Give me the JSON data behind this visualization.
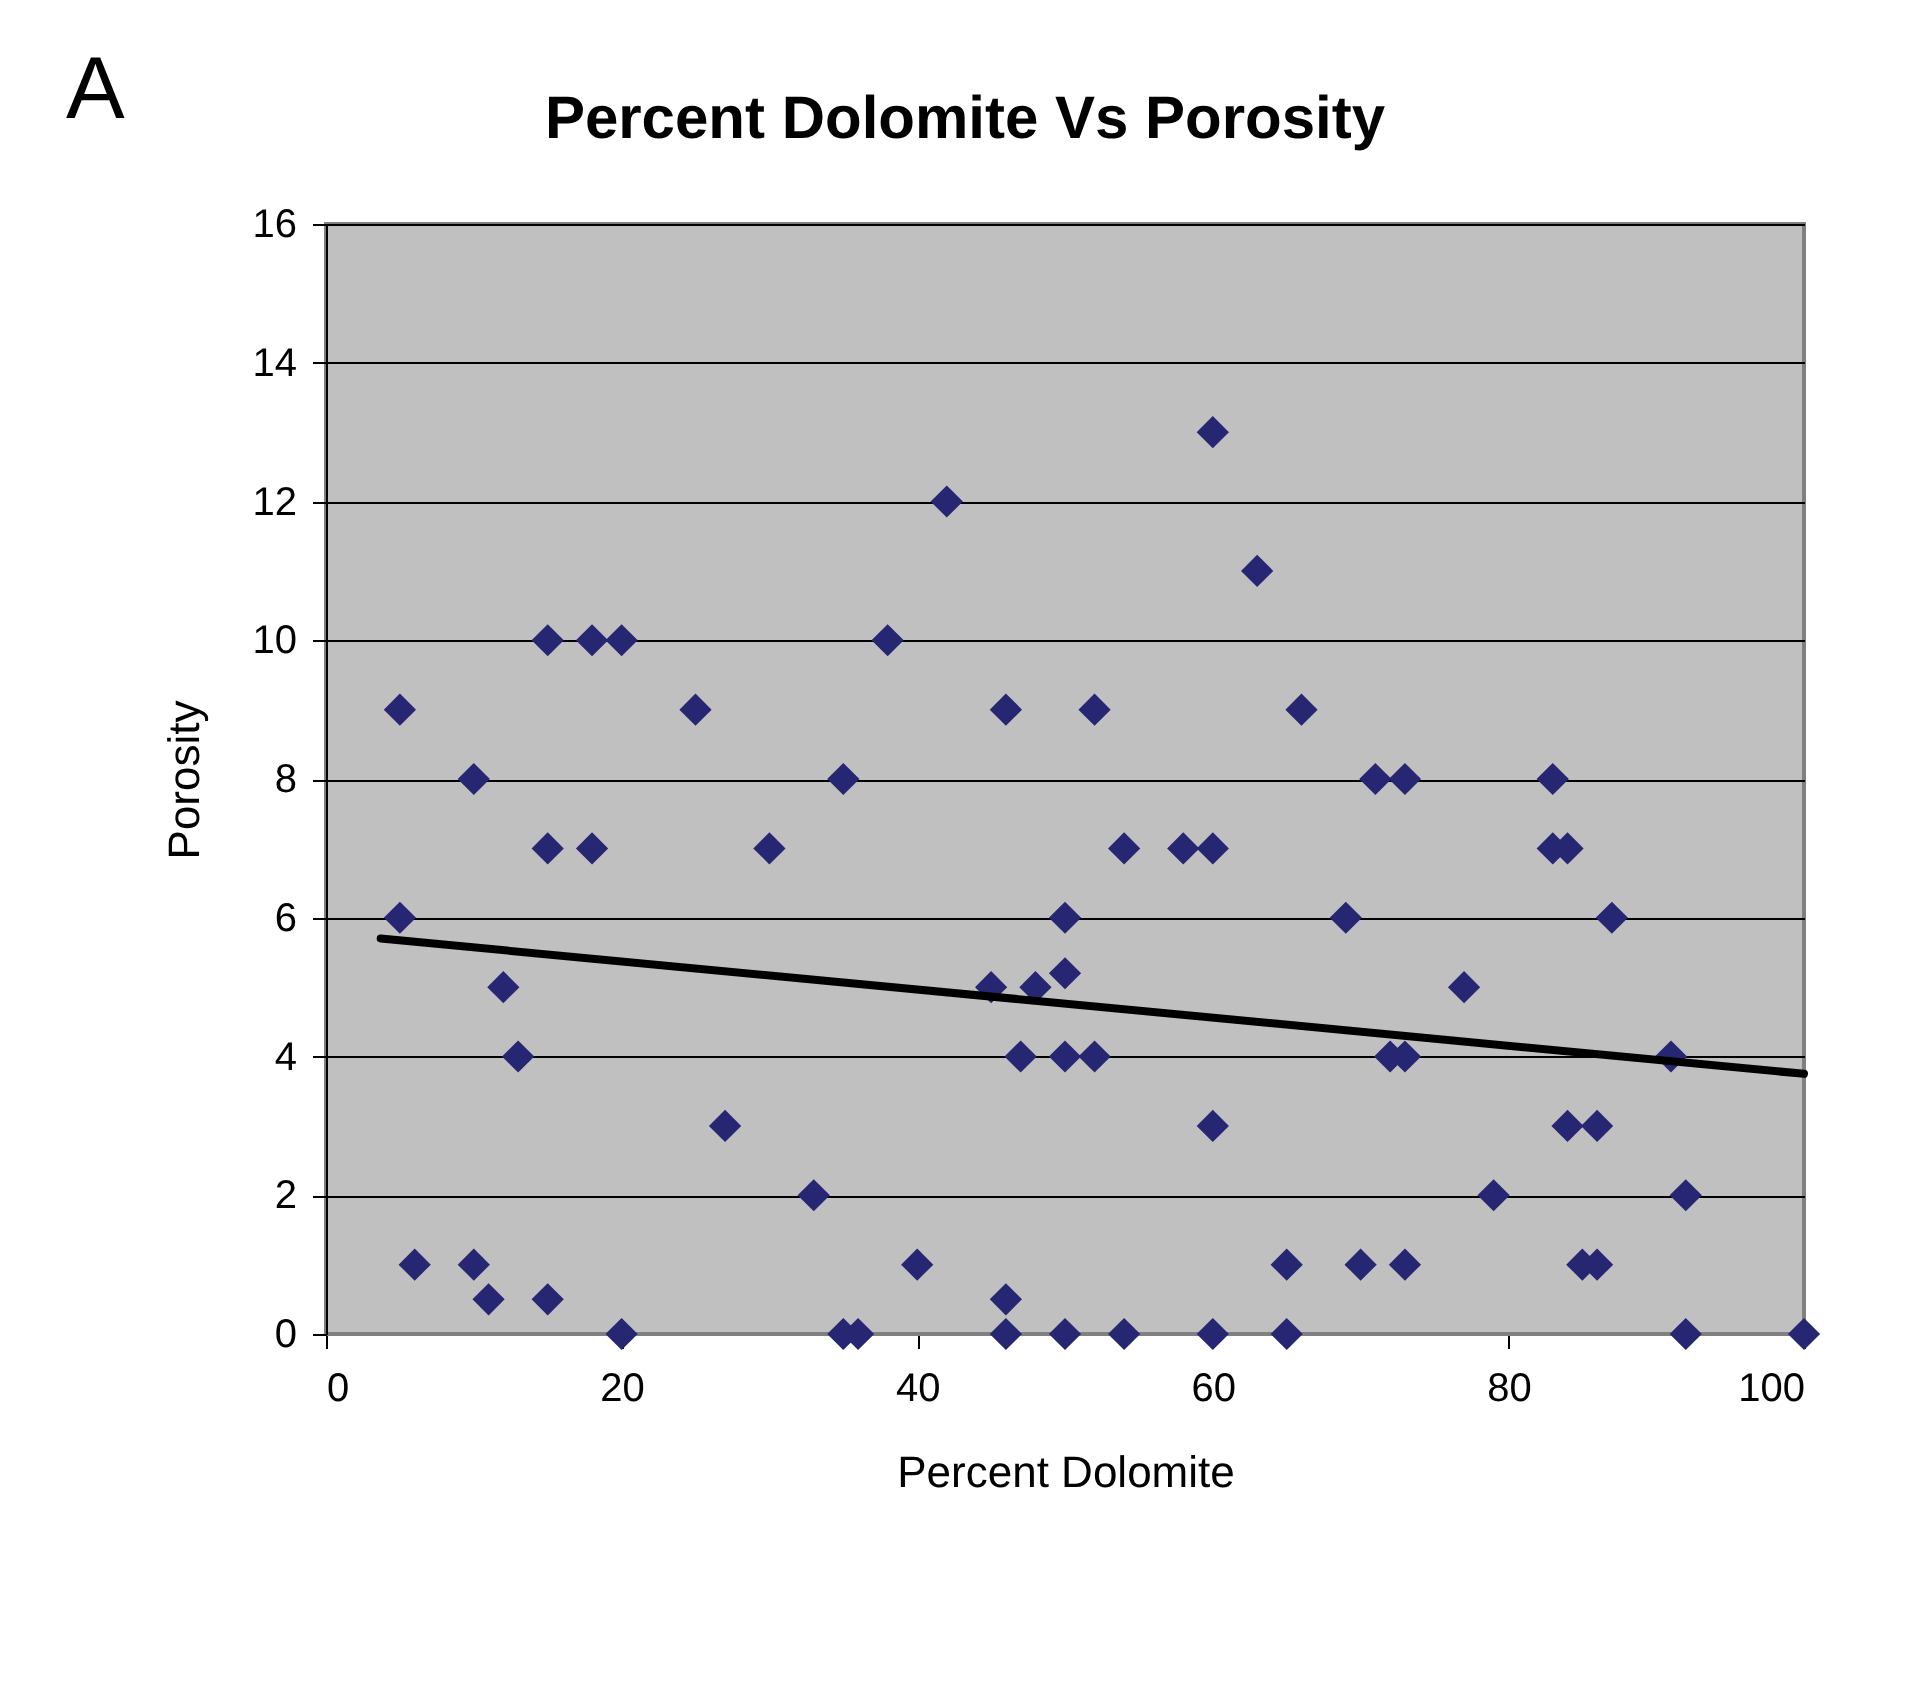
{
  "chart_data": {
    "type": "scatter",
    "title": "Percent Dolomite Vs Porosity",
    "xlabel": "Percent Dolomite",
    "ylabel": "Porosity",
    "annotations": [
      "A"
    ],
    "xlim": [
      0,
      100
    ],
    "xticks": [
      0,
      20,
      40,
      60,
      80,
      100
    ],
    "ylim": [
      0,
      16
    ],
    "yticks": [
      0,
      2,
      4,
      6,
      8,
      10,
      12,
      14,
      16
    ],
    "grid": "y",
    "legend": false,
    "marker": "diamond",
    "series": [
      {
        "color": "#262673",
        "x": [
          5,
          5,
          6,
          10,
          10,
          11,
          12,
          13,
          15,
          15,
          15,
          18,
          18,
          20,
          20,
          25,
          27,
          30,
          33,
          35,
          35,
          36,
          38,
          40,
          42,
          45,
          46,
          46,
          46,
          47,
          48,
          50,
          50,
          50,
          50,
          52,
          52,
          54,
          54,
          58,
          60,
          60,
          60,
          60,
          63,
          65,
          65,
          66,
          69,
          70,
          71,
          72,
          73,
          73,
          73,
          77,
          79,
          83,
          83,
          84,
          84,
          85,
          86,
          86,
          87,
          91,
          92,
          92,
          100
        ],
        "values": [
          9,
          6,
          1,
          8,
          1,
          0.5,
          5,
          4,
          10,
          7,
          0.5,
          10,
          7,
          10,
          0,
          9,
          3,
          7,
          2,
          8,
          0,
          0,
          10,
          1,
          12,
          5,
          9,
          0.5,
          0,
          4,
          5,
          5.2,
          6,
          4,
          0,
          9,
          4,
          7,
          0,
          7,
          7,
          13,
          3,
          0,
          11,
          0,
          1,
          9,
          6,
          1,
          8,
          4,
          8,
          4,
          1,
          5,
          2,
          8,
          7,
          7,
          3,
          1,
          1,
          3,
          6,
          4,
          2,
          0,
          0
        ]
      },
      {
        "type": "line",
        "color": "#000000",
        "marker": "none",
        "line_style": "solid",
        "x": [
          3.7,
          100
        ],
        "values": [
          5.7,
          3.75
        ]
      }
    ]
  }
}
